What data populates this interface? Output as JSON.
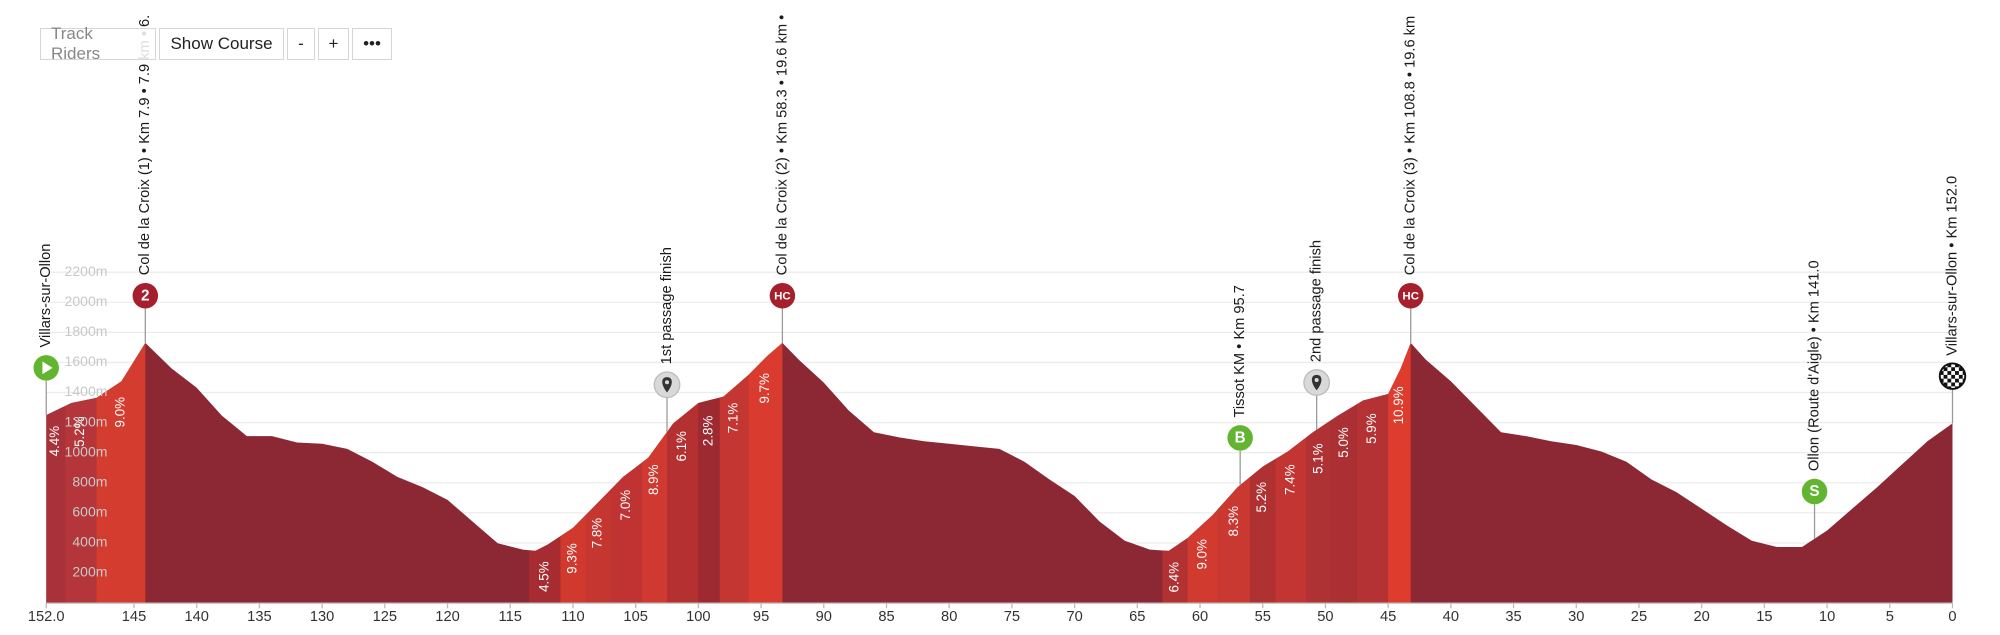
{
  "toolbar": {
    "buttons": [
      "Track Riders",
      "Show Course",
      "-",
      "+",
      "•••"
    ]
  },
  "chart_data": {
    "type": "area",
    "color": "#8b2833",
    "grid": true,
    "xlim": [
      152,
      0
    ],
    "ylim": [
      0,
      3950
    ],
    "xticks": [
      {
        "value": 152,
        "label": "152.0"
      },
      145,
      140,
      135,
      130,
      125,
      120,
      115,
      110,
      105,
      100,
      95,
      90,
      85,
      80,
      75,
      70,
      65,
      60,
      55,
      50,
      45,
      40,
      35,
      30,
      25,
      20,
      15,
      10,
      5,
      0
    ],
    "yticks": [
      {
        "value": 200,
        "label": "200m"
      },
      {
        "value": 400,
        "label": "400m"
      },
      {
        "value": 600,
        "label": "600m"
      },
      {
        "value": 800,
        "label": "800m"
      },
      {
        "value": 1000,
        "label": "1000m"
      },
      {
        "value": 1200,
        "label": "1200m"
      },
      {
        "value": 1400,
        "label": "1400m"
      },
      {
        "value": 1600,
        "label": "1600m"
      },
      {
        "value": 1800,
        "label": "1800m"
      },
      {
        "value": 2000,
        "label": "2000m"
      },
      {
        "value": 2200,
        "label": "2200m"
      }
    ],
    "x": [
      152,
      150,
      148,
      146,
      144.1,
      142,
      140,
      138,
      136,
      134,
      132,
      130,
      128,
      126,
      124,
      122,
      120,
      118,
      116,
      114,
      113,
      112,
      110,
      108,
      106,
      104,
      102,
      100,
      98,
      96,
      94.5,
      93.3,
      92,
      90,
      88,
      86,
      84,
      82,
      80,
      78,
      76,
      74,
      72,
      70,
      68,
      66,
      64,
      62.5,
      61,
      59,
      57,
      55,
      53,
      51,
      49,
      47,
      45,
      44,
      43.2,
      42,
      40,
      38,
      36,
      34,
      32,
      30,
      28,
      26,
      24,
      22,
      20,
      18,
      16,
      14,
      12,
      10,
      8,
      6,
      4,
      2,
      0
    ],
    "values": [
      1250,
      1330,
      1364,
      1475,
      1730,
      1560,
      1432,
      1246,
      1110,
      1110,
      1068,
      1059,
      1025,
      940,
      839,
      771,
      686,
      542,
      398,
      356,
      347,
      390,
      500,
      669,
      839,
      966,
      1195,
      1330,
      1373,
      1517,
      1644,
      1730,
      1619,
      1466,
      1280,
      1136,
      1102,
      1076,
      1059,
      1042,
      1025,
      940,
      822,
      712,
      542,
      415,
      356,
      347,
      432,
      585,
      771,
      907,
      1008,
      1136,
      1246,
      1347,
      1390,
      1560,
      1730,
      1619,
      1475,
      1305,
      1136,
      1110,
      1076,
      1051,
      1008,
      940,
      822,
      737,
      627,
      517,
      415,
      373,
      373,
      483,
      627,
      771,
      924,
      1076,
      1195
    ],
    "segments": [
      {
        "from": 152,
        "to": 150.5,
        "label": "4.4%",
        "color": "#a8313a"
      },
      {
        "from": 150.5,
        "to": 148,
        "label": "5.2%",
        "color": "#b4363a"
      },
      {
        "from": 148,
        "to": 144.1,
        "label": "9.0%",
        "color": "#d43c30"
      },
      {
        "from": 113.5,
        "to": 111,
        "label": "4.5%",
        "color": "#a62c31"
      },
      {
        "from": 111,
        "to": 109,
        "label": "9.3%",
        "color": "#d2392e"
      },
      {
        "from": 109,
        "to": 107,
        "label": "7.8%",
        "color": "#c53631"
      },
      {
        "from": 107,
        "to": 104.5,
        "label": "7.0%",
        "color": "#bf3432"
      },
      {
        "from": 104.5,
        "to": 102.5,
        "label": "8.9%",
        "color": "#d0392f"
      },
      {
        "from": 102.5,
        "to": 100,
        "label": "6.1%",
        "color": "#b53131"
      },
      {
        "from": 100,
        "to": 98.3,
        "label": "2.8%",
        "color": "#9d2a31"
      },
      {
        "from": 98.3,
        "to": 96,
        "label": "7.1%",
        "color": "#c33632"
      },
      {
        "from": 96,
        "to": 93.3,
        "label": "9.7%",
        "color": "#d93c2e"
      },
      {
        "from": 63,
        "to": 61,
        "label": "6.4%",
        "color": "#b23132"
      },
      {
        "from": 61,
        "to": 58.5,
        "label": "9.0%",
        "color": "#d03a2f"
      },
      {
        "from": 58.5,
        "to": 56,
        "label": "8.3%",
        "color": "#c93831"
      },
      {
        "from": 56,
        "to": 54,
        "label": "5.2%",
        "color": "#b03132"
      },
      {
        "from": 54,
        "to": 51.5,
        "label": "7.4%",
        "color": "#c23532"
      },
      {
        "from": 51.5,
        "to": 49.5,
        "label": "5.1%",
        "color": "#ae3133"
      },
      {
        "from": 49.5,
        "to": 47.5,
        "label": "5.0%",
        "color": "#aa3033"
      },
      {
        "from": 47.5,
        "to": 45,
        "label": "5.9%",
        "color": "#b43233"
      },
      {
        "from": 45,
        "to": 43.2,
        "label": "10.9%",
        "color": "#de3d2d"
      }
    ],
    "annotations": [
      {
        "x": 152,
        "label": "Villars-sur-Ollon",
        "icon": "start"
      },
      {
        "x": 144.1,
        "label": "Col de la Croix (1) • Km 7.9 • 7.9 km • 6.",
        "icon": "climb",
        "badge": "2"
      },
      {
        "x": 102.5,
        "label": "1st passage finish",
        "icon": "pin"
      },
      {
        "x": 93.3,
        "label": "Col de la Croix (2) • Km 58.3 • 19.6 km •",
        "icon": "climb",
        "badge": "HC"
      },
      {
        "x": 56.8,
        "label": "Tissot KM • Km 95.7",
        "icon": "bonus",
        "badge": "B"
      },
      {
        "x": 50.7,
        "label": "2nd passage finish",
        "icon": "pin"
      },
      {
        "x": 43.2,
        "label": "Col de la Croix (3) • Km 108.8 • 19.6 km",
        "icon": "climb",
        "badge": "HC"
      },
      {
        "x": 11,
        "label": "Ollon (Route d'Aigle) • Km 141.0",
        "icon": "bonus",
        "badge": "S"
      },
      {
        "x": 0,
        "label": "Villars-sur-Ollon • Km 152.0",
        "icon": "finish"
      }
    ]
  }
}
